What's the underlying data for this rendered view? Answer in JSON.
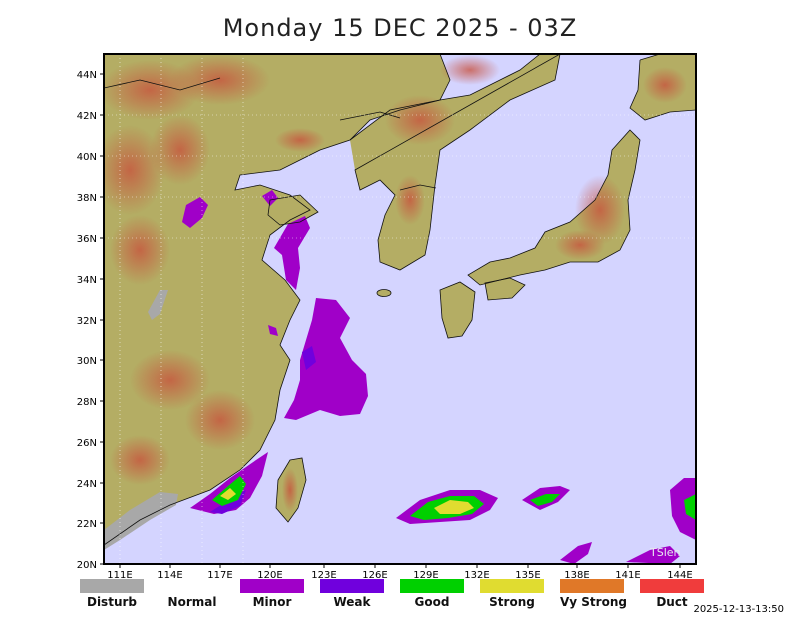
{
  "title": "Monday 15 DEC 2025 - 03Z",
  "lat_labels": [
    "44N",
    "42N",
    "40N",
    "38N",
    "36N",
    "34N",
    "32N",
    "30N",
    "28N",
    "26N",
    "24N",
    "22N",
    "20N"
  ],
  "lon_labels": [
    "111E",
    "114E",
    "117E",
    "120E",
    "123E",
    "126E",
    "129E",
    "132E",
    "135E",
    "138E",
    "141E",
    "144E"
  ],
  "legend": [
    {
      "label": "Disturb",
      "color": "#a8a8a8"
    },
    {
      "label": "Normal",
      "color": "#ffffff"
    },
    {
      "label": "Minor",
      "color": "#a000c8"
    },
    {
      "label": "Weak",
      "color": "#7000dd"
    },
    {
      "label": "Good",
      "color": "#00d000"
    },
    {
      "label": "Strong",
      "color": "#e0dc30"
    },
    {
      "label": "Vy Strong",
      "color": "#e07828"
    },
    {
      "label": "Duct",
      "color": "#f03c3c"
    }
  ],
  "timestamp": "2025-12-13-13:50",
  "watermark": "TSlen"
}
